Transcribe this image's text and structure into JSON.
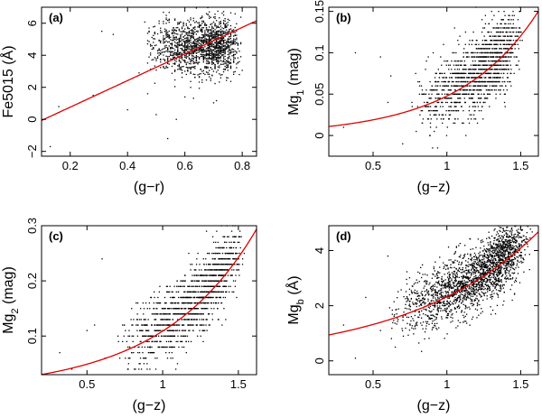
{
  "colors": {
    "fit": "#e00000",
    "points": "#000000",
    "frame": "#000000"
  },
  "chart_data": [
    {
      "type": "scatter",
      "panel_label": "(a)",
      "xlabel": "(g−r)",
      "ylabel": "Fe5015 (Å)",
      "xlim": [
        0.1,
        0.85
      ],
      "ylim": [
        -2.3,
        7.0
      ],
      "xticks": [
        0.2,
        0.4,
        0.6,
        0.8
      ],
      "xtick_labels": [
        "0.2",
        "0.4",
        "0.6",
        "0.8"
      ],
      "yticks": [
        -2,
        0,
        2,
        4,
        6
      ],
      "ytick_labels": [
        "−2",
        "0",
        "2",
        "4",
        "6"
      ],
      "fit": {
        "form": "linear",
        "coef": [
          -0.9,
          8.3
        ]
      },
      "cluster": {
        "xmin": 0.45,
        "xmax": 0.8,
        "xmode": 0.72,
        "ymean": 4.6,
        "ysd": 0.85,
        "n": 1600,
        "xstep": 0.005
      },
      "outliers": [
        [
          0.13,
          -1.7
        ],
        [
          0.16,
          0.8
        ],
        [
          0.28,
          1.5
        ],
        [
          0.31,
          5.5
        ],
        [
          0.35,
          5.3
        ],
        [
          0.4,
          0.6
        ],
        [
          0.44,
          2.9
        ],
        [
          0.47,
          1.6
        ],
        [
          0.5,
          0.3
        ],
        [
          0.54,
          -1.2
        ],
        [
          0.57,
          0.0
        ],
        [
          0.6,
          1.4
        ]
      ]
    },
    {
      "type": "scatter",
      "panel_label": "(b)",
      "xlabel": "(g−z)",
      "ylabel": "Mg₁ (mag)",
      "xlim": [
        0.2,
        1.62
      ],
      "ylim": [
        -0.025,
        0.155
      ],
      "xticks": [
        0.5,
        1.0,
        1.5
      ],
      "xtick_labels": [
        "0.5",
        "1",
        "1.5"
      ],
      "yticks": [
        0,
        0.05,
        0.1,
        0.15
      ],
      "ytick_labels": [
        "0",
        "0.05",
        "0.1",
        "0.15"
      ],
      "fit": {
        "form": "exp",
        "coef": [
          0.0075,
          1.85
        ]
      },
      "cluster": {
        "xmin": 0.75,
        "xmax": 1.52,
        "xmode": 1.35,
        "yoffset": 0.005,
        "ysd": 0.022,
        "n": 1400,
        "ystep": 0.005
      },
      "outliers": [
        [
          0.38,
          0.1
        ],
        [
          0.55,
          0.095
        ],
        [
          0.6,
          0.04
        ],
        [
          0.62,
          0.072
        ],
        [
          0.7,
          -0.01
        ],
        [
          0.3,
          0.01
        ]
      ]
    },
    {
      "type": "scatter",
      "panel_label": "(c)",
      "xlabel": "(g−z)",
      "ylabel": "Mg₂ (mag)",
      "xlim": [
        0.2,
        1.62
      ],
      "ylim": [
        0.03,
        0.3
      ],
      "xticks": [
        0.5,
        1.0,
        1.5
      ],
      "xtick_labels": [
        "0.5",
        "1",
        "1.5"
      ],
      "yticks": [
        0.1,
        0.2,
        0.3
      ],
      "ytick_labels": [
        "0.1",
        "0.2",
        "0.3"
      ],
      "fit": {
        "form": "exp",
        "coef": [
          0.022,
          1.6
        ]
      },
      "cluster": {
        "xmin": 0.68,
        "xmax": 1.55,
        "xmode": 1.35,
        "yoffset": 0.01,
        "ysd": 0.03,
        "n": 1400,
        "ystep": 0.01
      },
      "outliers": [
        [
          0.32,
          0.07
        ],
        [
          0.5,
          0.11
        ],
        [
          0.6,
          0.24
        ],
        [
          0.55,
          0.12
        ],
        [
          0.4,
          0.04
        ],
        [
          0.62,
          0.06
        ]
      ]
    },
    {
      "type": "scatter",
      "panel_label": "(d)",
      "xlabel": "(g−z)",
      "ylabel": "Mg_b (Å)",
      "xlim": [
        0.2,
        1.62
      ],
      "ylim": [
        -0.5,
        4.9
      ],
      "xticks": [
        0.5,
        1.0,
        1.5
      ],
      "xtick_labels": [
        "0.5",
        "1",
        "1.5"
      ],
      "yticks": [
        0,
        2,
        4
      ],
      "ytick_labels": [
        "0",
        "2",
        "4"
      ],
      "fit": {
        "form": "exp",
        "coef": [
          0.75,
          1.13
        ]
      },
      "cluster": {
        "xmin": 0.6,
        "xmax": 1.58,
        "xmode": 1.38,
        "yoffset": 0.15,
        "ysd": 0.55,
        "n": 2200,
        "xstep": 0.003
      },
      "outliers": [
        [
          0.3,
          1.3
        ],
        [
          0.38,
          0.1
        ],
        [
          0.45,
          2.3
        ],
        [
          0.55,
          1.1
        ],
        [
          0.6,
          3.8
        ],
        [
          0.65,
          0.5
        ]
      ]
    }
  ]
}
